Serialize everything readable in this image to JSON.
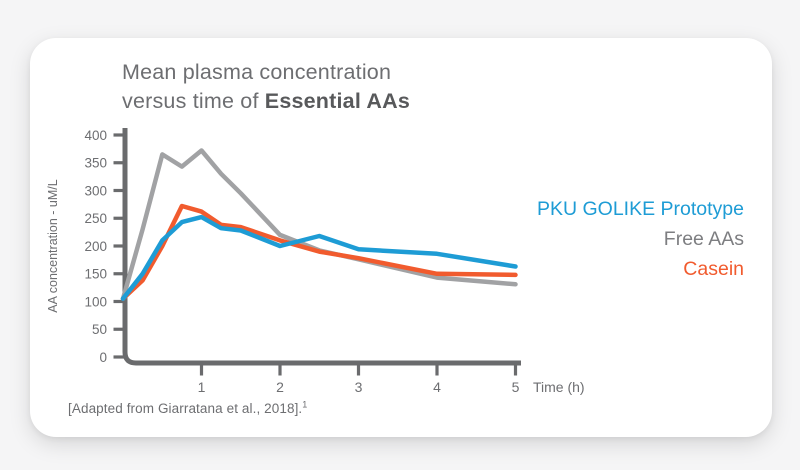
{
  "page": {
    "background_color": "#f5f5f6",
    "card_background_color": "#ffffff"
  },
  "title": {
    "line1": "Mean plasma concentration",
    "line2_prefix": "versus time of ",
    "line2_bold": "Essential AAs"
  },
  "legend": [
    {
      "label": "PKU GOLIKE Prototype",
      "color": "#1e9cd5"
    },
    {
      "label": "Free AAs",
      "color": "#7d7e81"
    },
    {
      "label": "Casein",
      "color": "#f15b2e"
    }
  ],
  "footnote": {
    "text": "[Adapted from Giarratana et al., 2018].",
    "superscript": "1"
  },
  "axis": {
    "color": "#6a6b6d",
    "tick_label_color": "#6d6e71"
  },
  "chart_data": {
    "type": "line",
    "title": "Mean plasma concentration versus time of Essential AAs",
    "xlabel": "Time (h)",
    "ylabel": "AA concentration - uM/L",
    "xlim": [
      0,
      5
    ],
    "ylim": [
      0,
      400
    ],
    "x_ticks": [
      1,
      2,
      3,
      4,
      5
    ],
    "y_ticks": [
      0,
      50,
      100,
      150,
      200,
      250,
      300,
      350,
      400
    ],
    "grid": false,
    "legend_position": "right",
    "x": [
      0,
      0.25,
      0.5,
      0.75,
      1,
      1.25,
      1.5,
      2,
      2.5,
      3,
      4,
      5
    ],
    "series": [
      {
        "name": "PKU GOLIKE Prototype",
        "color": "#1e9cd5",
        "z": 3,
        "values": [
          105,
          150,
          210,
          243,
          252,
          232,
          228,
          200,
          218,
          194,
          186,
          163
        ]
      },
      {
        "name": "Free AAs",
        "color": "#a1a2a4",
        "z": 1,
        "values": [
          105,
          230,
          365,
          343,
          372,
          330,
          295,
          220,
          192,
          176,
          143,
          131
        ]
      },
      {
        "name": "Casein",
        "color": "#f15b2e",
        "z": 2,
        "values": [
          105,
          138,
          200,
          272,
          262,
          238,
          234,
          210,
          190,
          178,
          150,
          148
        ]
      }
    ]
  }
}
